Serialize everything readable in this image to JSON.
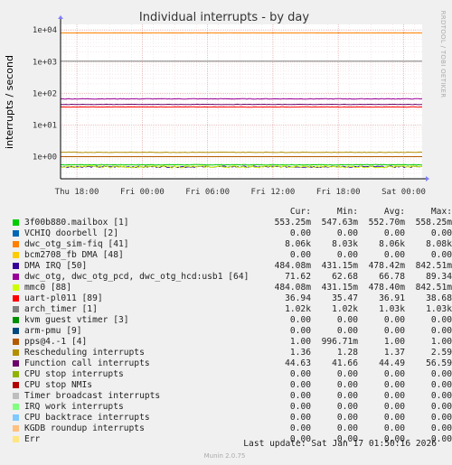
{
  "chart_data": {
    "type": "line",
    "title": "Individual interrupts - by day",
    "ylabel": "interrupts / second",
    "yscale": "log",
    "ylim": [
      0.2,
      15000
    ],
    "y_ticks": [
      {
        "v": 1,
        "label": "1e+00"
      },
      {
        "v": 10,
        "label": "1e+01"
      },
      {
        "v": 100,
        "label": "1e+02"
      },
      {
        "v": 1000,
        "label": "1e+03"
      },
      {
        "v": 10000,
        "label": "1e+04"
      }
    ],
    "x_ticks": [
      {
        "t": 0,
        "label": "Thu 18:00"
      },
      {
        "t": 6,
        "label": "Fri 00:00"
      },
      {
        "t": 12,
        "label": "Fri 06:00"
      },
      {
        "t": 18,
        "label": "Fri 12:00"
      },
      {
        "t": 24,
        "label": "Fri 18:00"
      },
      {
        "t": 30,
        "label": "Sat 00:00"
      }
    ],
    "xlim": [
      -1.5,
      31.7
    ],
    "grid": true,
    "side_label": "RRDTOOL / TOBI OETIKER",
    "series": [
      {
        "name": "3f00b880.mailbox [1]",
        "color": "#00cc00",
        "cur": "553.25m",
        "min": "547.63m",
        "avg": "552.70m",
        "max": "558.25m",
        "level": 0.553,
        "noise": 0.02
      },
      {
        "name": "VCHIQ doorbell [2]",
        "color": "#0066b3",
        "cur": "0.00",
        "min": "0.00",
        "avg": "0.00",
        "max": "0.00",
        "level": 0
      },
      {
        "name": "dwc_otg_sim-fiq [41]",
        "color": "#ff8000",
        "cur": "8.06k",
        "min": "8.03k",
        "avg": "8.06k",
        "max": "8.08k",
        "level": 8060,
        "noise": 0.002
      },
      {
        "name": "bcm2708_fb DMA [48]",
        "color": "#ffcc00",
        "cur": "0.00",
        "min": "0.00",
        "avg": "0.00",
        "max": "0.00",
        "level": 0
      },
      {
        "name": "DMA IRQ [50]",
        "color": "#330099",
        "cur": "484.08m",
        "min": "431.15m",
        "avg": "478.42m",
        "max": "842.51m",
        "level": 0.48,
        "noise": 0.05
      },
      {
        "name": "dwc_otg, dwc_otg_pcd, dwc_otg_hcd:usb1 [64]",
        "color": "#990099",
        "cur": "71.62",
        "min": "62.68",
        "avg": "66.78",
        "max": "89.34",
        "level": 66.78,
        "noise": 0.02
      },
      {
        "name": "mmc0 [88]",
        "color": "#ccff00",
        "cur": "484.08m",
        "min": "431.15m",
        "avg": "478.40m",
        "max": "842.51m",
        "level": 0.48,
        "noise": 0.08
      },
      {
        "name": "uart-pl011 [89]",
        "color": "#ff0000",
        "cur": "36.94",
        "min": "35.47",
        "avg": "36.91",
        "max": "38.68",
        "level": 36.9,
        "noise": 0.01
      },
      {
        "name": "arch_timer [1]",
        "color": "#808080",
        "cur": "1.02k",
        "min": "1.02k",
        "avg": "1.03k",
        "max": "1.03k",
        "level": 1030,
        "noise": 0.002
      },
      {
        "name": "kvm guest vtimer [3]",
        "color": "#008f00",
        "cur": "0.00",
        "min": "0.00",
        "avg": "0.00",
        "max": "0.00",
        "level": 0
      },
      {
        "name": "arm-pmu [9]",
        "color": "#00487d",
        "cur": "0.00",
        "min": "0.00",
        "avg": "0.00",
        "max": "0.00",
        "level": 0
      },
      {
        "name": "pps@4.-1 [4]",
        "color": "#b35a00",
        "cur": "1.00",
        "min": "996.71m",
        "avg": "1.00",
        "max": "1.00",
        "level": 1.0,
        "noise": 0.001
      },
      {
        "name": "Rescheduling interrupts",
        "color": "#b38f00",
        "cur": "1.36",
        "min": "1.28",
        "avg": "1.37",
        "max": "2.59",
        "level": 1.37,
        "noise": 0.02
      },
      {
        "name": "Function call interrupts",
        "color": "#6b006b",
        "cur": "44.63",
        "min": "41.66",
        "avg": "44.49",
        "max": "56.59",
        "level": 44.49,
        "noise": 0.015
      },
      {
        "name": "CPU stop interrupts",
        "color": "#8fb300",
        "cur": "0.00",
        "min": "0.00",
        "avg": "0.00",
        "max": "0.00",
        "level": 0
      },
      {
        "name": "CPU stop NMIs",
        "color": "#b30000",
        "cur": "0.00",
        "min": "0.00",
        "avg": "0.00",
        "max": "0.00",
        "level": 0
      },
      {
        "name": "Timer broadcast interrupts",
        "color": "#bebebe",
        "cur": "0.00",
        "min": "0.00",
        "avg": "0.00",
        "max": "0.00",
        "level": 0
      },
      {
        "name": "IRQ work interrupts",
        "color": "#80ff80",
        "cur": "0.00",
        "min": "0.00",
        "avg": "0.00",
        "max": "0.00",
        "level": 0
      },
      {
        "name": "CPU backtrace interrupts",
        "color": "#80c9ff",
        "cur": "0.00",
        "min": "0.00",
        "avg": "0.00",
        "max": "0.00",
        "level": 0
      },
      {
        "name": "KGDB roundup interrupts",
        "color": "#ffc080",
        "cur": "0.00",
        "min": "0.00",
        "avg": "0.00",
        "max": "0.00",
        "level": 0
      },
      {
        "name": "Err",
        "color": "#ffe680",
        "cur": "0.00",
        "min": "0.00",
        "avg": "0.00",
        "max": "0.00",
        "level": 0
      }
    ]
  },
  "legend": {
    "head_cur": "Cur:",
    "head_min": "Min:",
    "head_avg": "Avg:",
    "head_max": "Max:"
  },
  "footer": {
    "last_update": "Last update: Sat Jan 17 01:50:16 2026",
    "munin_version": "Munin 2.0.75"
  }
}
